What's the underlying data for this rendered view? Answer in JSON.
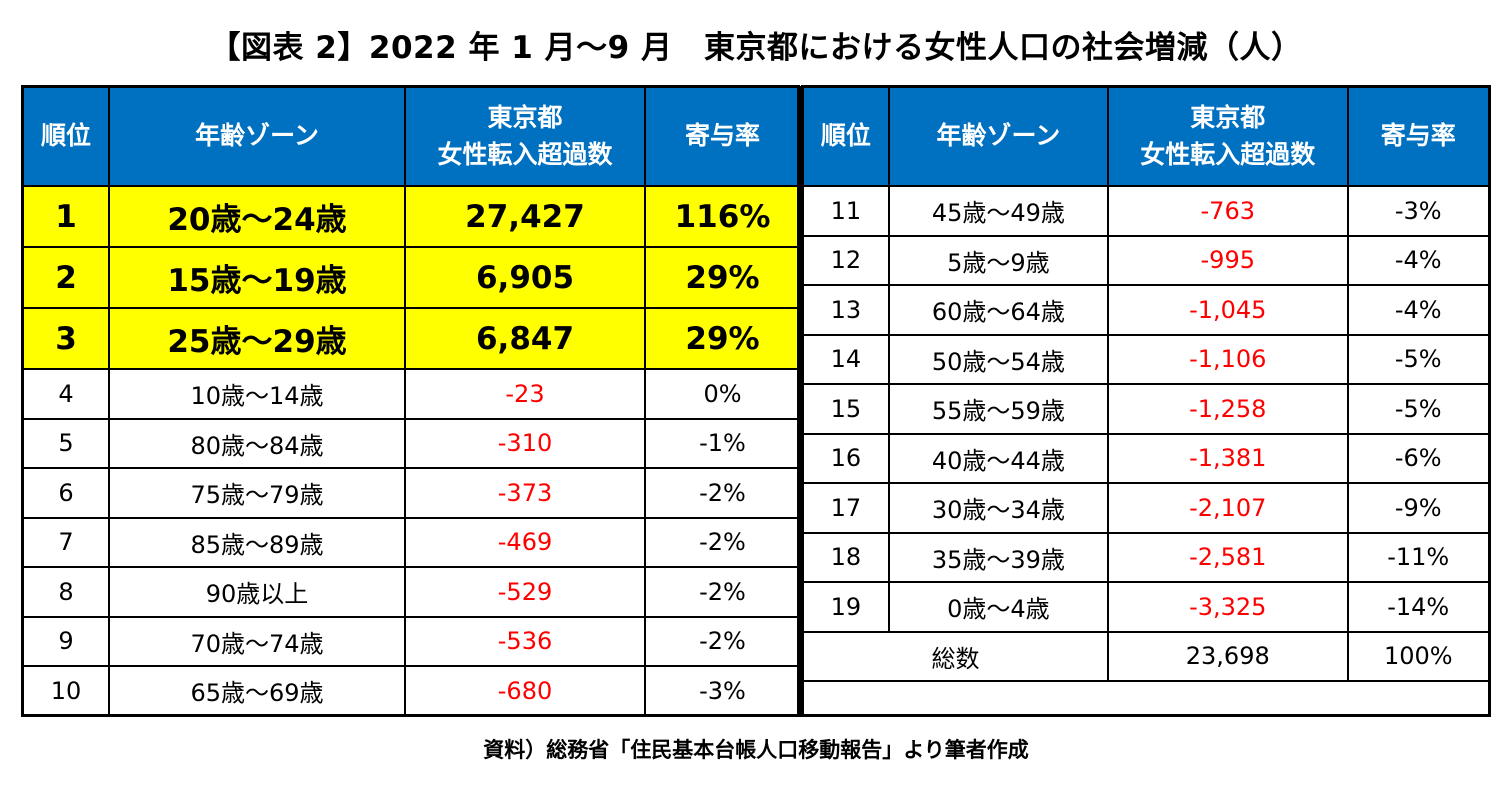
{
  "title": "【図表 2】2022 年 1 月～9 月　東京都における女性人口の社会増減（人）",
  "headers": {
    "rank": "順位",
    "age_zone": "年齢ゾーン",
    "net_inflow_line1": "東京都",
    "net_inflow_line2": "女性転入超過数",
    "contribution": "寄与率"
  },
  "colors": {
    "header_bg": "#0070c0",
    "highlight_bg": "#ffff00",
    "negative": "#ff0000"
  },
  "chart_data": {
    "type": "table",
    "columns": [
      "順位",
      "年齢ゾーン",
      "東京都 女性転入超過数",
      "寄与率"
    ],
    "rows": [
      {
        "rank": "1",
        "age": "20歳～24歳",
        "value": "27,427",
        "rate": "116%",
        "highlight": true,
        "negative": false
      },
      {
        "rank": "2",
        "age": "15歳～19歳",
        "value": "6,905",
        "rate": "29%",
        "highlight": true,
        "negative": false
      },
      {
        "rank": "3",
        "age": "25歳～29歳",
        "value": "6,847",
        "rate": "29%",
        "highlight": true,
        "negative": false
      },
      {
        "rank": "4",
        "age": "10歳～14歳",
        "value": "-23",
        "rate": "0%",
        "highlight": false,
        "negative": true
      },
      {
        "rank": "5",
        "age": "80歳～84歳",
        "value": "-310",
        "rate": "-1%",
        "highlight": false,
        "negative": true
      },
      {
        "rank": "6",
        "age": "75歳～79歳",
        "value": "-373",
        "rate": "-2%",
        "highlight": false,
        "negative": true
      },
      {
        "rank": "7",
        "age": "85歳～89歳",
        "value": "-469",
        "rate": "-2%",
        "highlight": false,
        "negative": true
      },
      {
        "rank": "8",
        "age": "90歳以上",
        "value": "-529",
        "rate": "-2%",
        "highlight": false,
        "negative": true
      },
      {
        "rank": "9",
        "age": "70歳～74歳",
        "value": "-536",
        "rate": "-2%",
        "highlight": false,
        "negative": true
      },
      {
        "rank": "10",
        "age": "65歳～69歳",
        "value": "-680",
        "rate": "-3%",
        "highlight": false,
        "negative": true
      },
      {
        "rank": "11",
        "age": "45歳～49歳",
        "value": "-763",
        "rate": "-3%",
        "highlight": false,
        "negative": true
      },
      {
        "rank": "12",
        "age": "5歳～9歳",
        "value": "-995",
        "rate": "-4%",
        "highlight": false,
        "negative": true
      },
      {
        "rank": "13",
        "age": "60歳～64歳",
        "value": "-1,045",
        "rate": "-4%",
        "highlight": false,
        "negative": true
      },
      {
        "rank": "14",
        "age": "50歳～54歳",
        "value": "-1,106",
        "rate": "-5%",
        "highlight": false,
        "negative": true
      },
      {
        "rank": "15",
        "age": "55歳～59歳",
        "value": "-1,258",
        "rate": "-5%",
        "highlight": false,
        "negative": true
      },
      {
        "rank": "16",
        "age": "40歳～44歳",
        "value": "-1,381",
        "rate": "-6%",
        "highlight": false,
        "negative": true
      },
      {
        "rank": "17",
        "age": "30歳～34歳",
        "value": "-2,107",
        "rate": "-9%",
        "highlight": false,
        "negative": true
      },
      {
        "rank": "18",
        "age": "35歳～39歳",
        "value": "-2,581",
        "rate": "-11%",
        "highlight": false,
        "negative": true
      },
      {
        "rank": "19",
        "age": "0歳～4歳",
        "value": "-3,325",
        "rate": "-14%",
        "highlight": false,
        "negative": true
      }
    ],
    "total": {
      "label": "総数",
      "value": "23,698",
      "rate": "100%"
    }
  },
  "source": "資料）総務省「住民基本台帳人口移動報告」より筆者作成"
}
